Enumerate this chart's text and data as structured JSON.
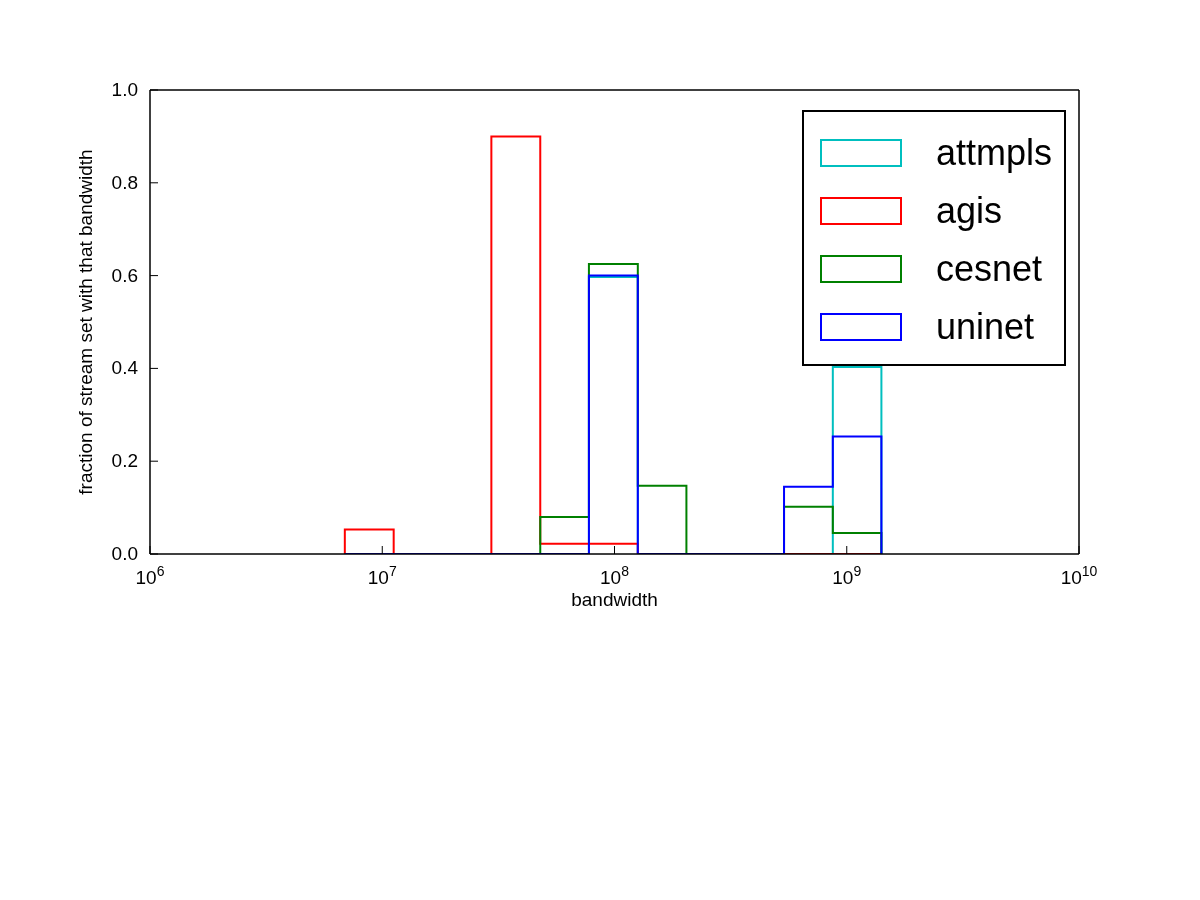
{
  "chart_data": {
    "type": "histogram",
    "xlabel": "bandwidth",
    "ylabel": "fraction of stream set with that bandwidth",
    "bins": [
      6900000,
      11200000,
      18200000,
      29500000,
      47900000,
      77600000,
      126000000,
      204000000,
      331000000,
      537000000,
      871000000,
      1410000000
    ],
    "series": [
      {
        "name": "attmpls",
        "color": "#00bfbf",
        "values": [
          0,
          0,
          0,
          0,
          0,
          0.597,
          0,
          0,
          0,
          0,
          0.403
        ]
      },
      {
        "name": "agis",
        "color": "#ff0000",
        "values": [
          0.053,
          0,
          0,
          0.9,
          0.022,
          0.022,
          0,
          0,
          0,
          0,
          0
        ]
      },
      {
        "name": "cesnet",
        "color": "#008000",
        "values": [
          0,
          0,
          0,
          0,
          0.08,
          0.625,
          0.147,
          0,
          0,
          0.102,
          0.045
        ]
      },
      {
        "name": "uninet",
        "color": "#0000ff",
        "values": [
          0,
          0,
          0,
          0,
          0,
          0.6,
          0,
          0,
          0,
          0.145,
          0.253
        ]
      }
    ],
    "log": "x",
    "xlim": [
      1000000,
      10000000000
    ],
    "xticks": [
      {
        "value": 1000000,
        "label": "10$^{6}$"
      },
      {
        "value": 10000000,
        "label": "10$^{7}$"
      },
      {
        "value": 100000000,
        "label": "10$^{8}$"
      },
      {
        "value": 1000000000,
        "label": "10$^{9}$"
      },
      {
        "value": 10000000000,
        "label": "10$^{10}$"
      }
    ],
    "ylim": [
      0,
      1
    ],
    "yticks": [
      {
        "value": 0,
        "label": "0.0"
      },
      {
        "value": 0.2,
        "label": "0.2"
      },
      {
        "value": 0.4,
        "label": "0.4"
      },
      {
        "value": 0.6,
        "label": "0.6"
      },
      {
        "value": 0.8,
        "label": "0.8"
      },
      {
        "value": 1,
        "label": "1.0"
      }
    ],
    "legend": "top right",
    "grid": false
  }
}
